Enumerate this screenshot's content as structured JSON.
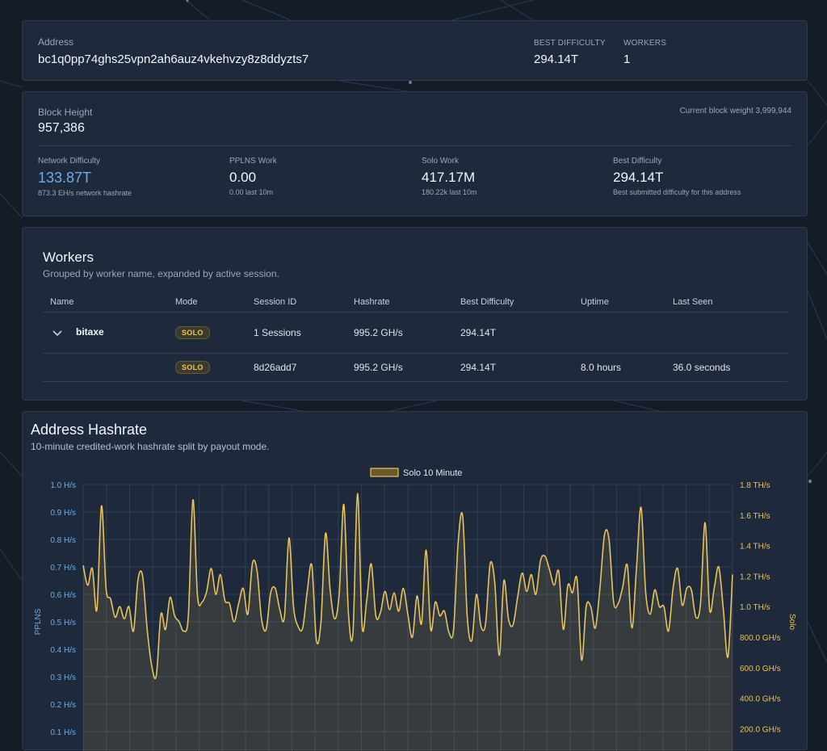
{
  "address_card": {
    "address_label": "Address",
    "address": "bc1q0pp74ghs25vpn2ah6auz4vkehvzy8z8ddyzts7",
    "best_difficulty_label": "BEST DIFFICULTY",
    "best_difficulty": "294.14T",
    "workers_label": "WORKERS",
    "workers": "1"
  },
  "stats_card": {
    "block_height_label": "Block Height",
    "block_height": "957,386",
    "block_weight": "Current block weight 3,999,944",
    "stats": [
      {
        "label": "Network Difficulty",
        "value": "133.87T",
        "sub": "873.3 EH/s network hashrate",
        "accent": "#6aaee8"
      },
      {
        "label": "PPLNS Work",
        "value": "0.00",
        "sub": "0.00 last 10m",
        "accent": "#f2f5f9"
      },
      {
        "label": "Solo Work",
        "value": "417.17M",
        "sub": "180.22k last 10m",
        "accent": "#f2f5f9"
      },
      {
        "label": "Best Difficulty",
        "value": "294.14T",
        "sub": "Best submitted difficulty for this address",
        "accent": "#f2f5f9"
      }
    ]
  },
  "workers_card": {
    "title": "Workers",
    "subtitle": "Grouped by worker name, expanded by active session.",
    "columns": [
      "Name",
      "Mode",
      "Session ID",
      "Hashrate",
      "Best Difficulty",
      "Uptime",
      "Last Seen"
    ],
    "rows": [
      {
        "name": "bitaxe",
        "mode": "SOLO",
        "session": "1 Sessions",
        "hashrate": "995.2 GH/s",
        "best": "294.14T",
        "uptime": "",
        "last_seen": ""
      },
      {
        "name": "",
        "mode": "SOLO",
        "session": "8d26add7",
        "hashrate": "995.2 GH/s",
        "best": "294.14T",
        "uptime": "8.0 hours",
        "last_seen": "36.0 seconds"
      }
    ]
  },
  "chart_card": {
    "title": "Address Hashrate",
    "subtitle": "10-minute credited-work hashrate split by payout mode."
  },
  "chart_data": {
    "type": "area",
    "legend": [
      "Solo 10 Minute"
    ],
    "legend_position": "top-center",
    "y_left_label": "PPLNS",
    "y_right_label": "Solo",
    "y_left_ticks": [
      "1.0 H/s",
      "0.9 H/s",
      "0.8 H/s",
      "0.7 H/s",
      "0.6 H/s",
      "0.5 H/s",
      "0.4 H/s",
      "0.3 H/s",
      "0.2 H/s",
      "0.1 H/s"
    ],
    "y_right_ticks": [
      "1.8 TH/s",
      "1.6 TH/s",
      "1.4 TH/s",
      "1.2 TH/s",
      "1.0 TH/s",
      "800.0 GH/s",
      "600.0 GH/s",
      "400.0 GH/s",
      "200.0 GH/s"
    ],
    "y_right_range_ghs": [
      0,
      1800
    ],
    "grid": true,
    "series": [
      {
        "name": "Solo 10 Minute",
        "color": "#e8c25a",
        "values_ghs": [
          1270,
          1140,
          1250,
          980,
          1660,
          1120,
          1050,
          930,
          1000,
          920,
          1000,
          840,
          1180,
          1200,
          850,
          610,
          550,
          950,
          850,
          1060,
          940,
          900,
          840,
          940,
          1700,
          1070,
          1030,
          1100,
          1250,
          1080,
          1210,
          1040,
          1020,
          900,
          1020,
          1120,
          950,
          1280,
          1240,
          920,
          850,
          1090,
          1120,
          980,
          930,
          1450,
          1000,
          870,
          860,
          1100,
          1270,
          780,
          900,
          1480,
          1110,
          920,
          1090,
          1670,
          960,
          830,
          1740,
          870,
          1040,
          1280,
          940,
          960,
          1100,
          980,
          1090,
          970,
          1120,
          950,
          800,
          1070,
          890,
          1370,
          850,
          1030,
          940,
          970,
          830,
          850,
          1420,
          1590,
          930,
          780,
          1080,
          870,
          890,
          1280,
          1160,
          680,
          1170,
          920,
          880,
          1060,
          1220,
          1100,
          1210,
          1080,
          1300,
          1330,
          1240,
          1140,
          1230,
          850,
          1140,
          1090,
          1180,
          650,
          1000,
          1000,
          860,
          1120,
          1470,
          1440,
          1030,
          1020,
          1130,
          1270,
          860,
          1250,
          1650,
          1100,
          950,
          1110,
          1000,
          1000,
          840,
          1120,
          1250,
          1010,
          1120,
          1110,
          930,
          1020,
          1550,
          980,
          1120,
          1260,
          980,
          670,
          1210
        ]
      }
    ]
  },
  "colors": {
    "background": "#151c27",
    "card": "#1e2a3b",
    "accent_blue": "#6aaee8",
    "solo_gold": "#e8c25a",
    "network_line": "#2b3a4f"
  }
}
